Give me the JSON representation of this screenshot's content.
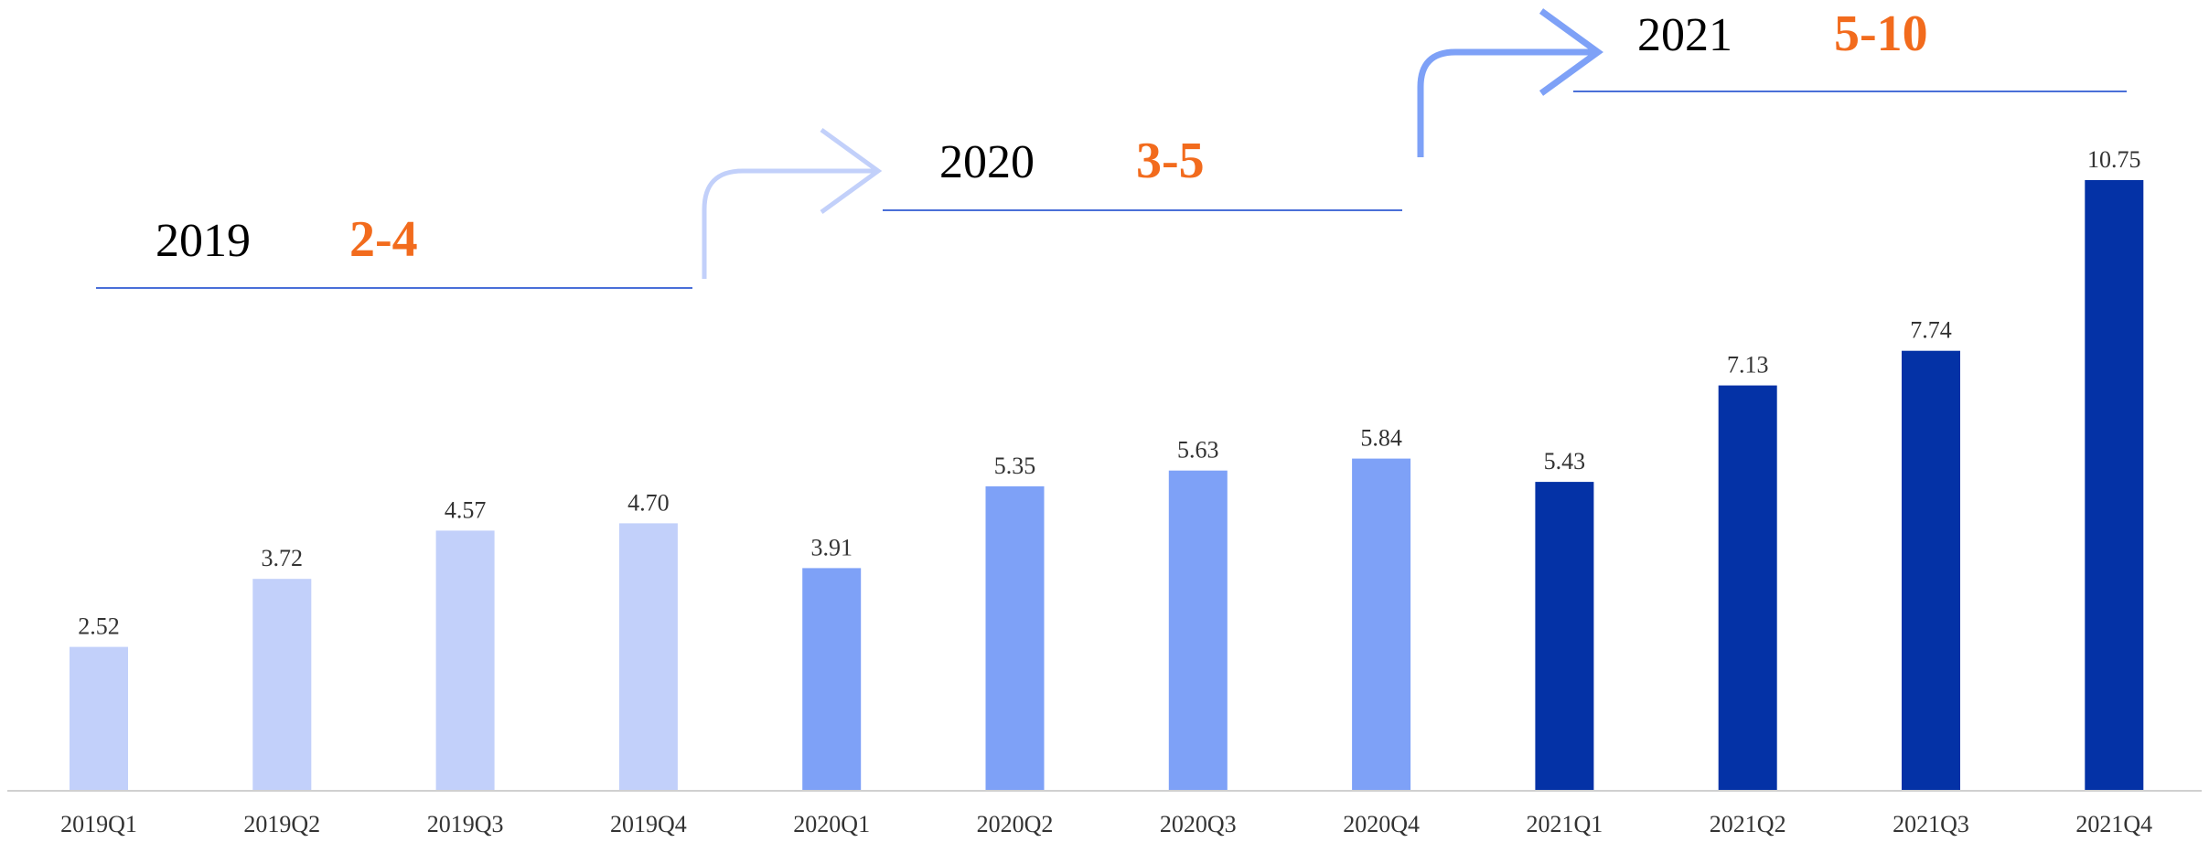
{
  "chart_data": {
    "type": "bar",
    "categories": [
      "2019Q1",
      "2019Q2",
      "2019Q3",
      "2019Q4",
      "2020Q1",
      "2020Q2",
      "2020Q3",
      "2020Q4",
      "2021Q1",
      "2021Q2",
      "2021Q3",
      "2021Q4"
    ],
    "values": [
      2.52,
      3.72,
      4.57,
      4.7,
      3.91,
      5.35,
      5.63,
      5.84,
      5.43,
      7.13,
      7.74,
      10.75
    ],
    "value_labels": [
      "2.52",
      "3.72",
      "4.57",
      "4.70",
      "3.91",
      "5.35",
      "5.63",
      "5.84",
      "5.43",
      "7.13",
      "7.74",
      "10.75"
    ],
    "bar_colors": [
      "#c2d0fa",
      "#c2d0fa",
      "#c2d0fa",
      "#c2d0fa",
      "#7ea1f7",
      "#7ea1f7",
      "#7ea1f7",
      "#7ea1f7",
      "#0432a6",
      "#0432a6",
      "#0432a6",
      "#0432a6"
    ],
    "title": "",
    "xlabel": "",
    "ylabel": "",
    "ylim": [
      0,
      11.5
    ],
    "grid": false,
    "legend": "none",
    "annotations": [
      {
        "year": "2019",
        "range": "2-4",
        "arrow_color": "#c2d0fa",
        "line_color": "#4a6fd8"
      },
      {
        "year": "2020",
        "range": "3-5",
        "arrow_color": "#c2d0fa",
        "line_color": "#4a6fd8"
      },
      {
        "year": "2021",
        "range": "5-10",
        "arrow_color": "#7ea1f7",
        "line_color": "#4a6fd8"
      }
    ],
    "range_color": "#f26b1d",
    "axis_color": "#d0d0d0"
  }
}
